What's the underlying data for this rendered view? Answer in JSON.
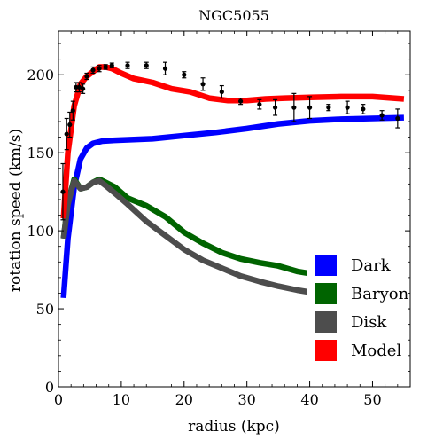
{
  "chart_data": {
    "type": "line",
    "title": "NGC5055",
    "xlabel": "radius (kpc)",
    "ylabel": "rotation speed (km/s)",
    "xlim": [
      0,
      56
    ],
    "ylim": [
      0,
      228
    ],
    "xticks": [
      0,
      10,
      20,
      30,
      40,
      50
    ],
    "yticks": [
      0,
      50,
      100,
      150,
      200
    ],
    "grid": false,
    "legend": "bottom-right",
    "series": [
      {
        "name": "Dark",
        "color": "#0000ff",
        "x": [
          0.8,
          1.5,
          2.5,
          3.5,
          4.5,
          5.5,
          7,
          9,
          12,
          15,
          20,
          25,
          30,
          35,
          40,
          45,
          50,
          55
        ],
        "y": [
          57,
          95,
          128,
          146,
          153,
          156,
          157.5,
          158,
          158.5,
          159,
          161,
          163,
          165.5,
          168.5,
          170.5,
          171.5,
          172,
          172.5
        ]
      },
      {
        "name": "Baryon",
        "color": "#006400",
        "x": [
          0.8,
          1.5,
          2.5,
          3.5,
          4.5,
          5.5,
          6.5,
          7.5,
          9,
          11,
          14,
          17,
          20,
          23,
          26,
          29,
          32,
          35,
          38,
          41,
          44,
          47,
          50,
          55
        ],
        "y": [
          95,
          118,
          133,
          127,
          128,
          131,
          133,
          131,
          128,
          121,
          116,
          109,
          99,
          92,
          86,
          82,
          79.5,
          77.5,
          74,
          72,
          70,
          68.5,
          66.5,
          62
        ]
      },
      {
        "name": "Disk",
        "color": "#4d4d4d",
        "x": [
          0.8,
          1.5,
          2.5,
          3.5,
          4.5,
          5.5,
          6.5,
          7.5,
          9,
          11,
          14,
          17,
          20,
          23,
          26,
          29,
          32,
          35,
          38,
          41,
          44,
          47,
          50,
          55
        ],
        "y": [
          95,
          117,
          132,
          127,
          128,
          131,
          132,
          129,
          124,
          117,
          106,
          97,
          88,
          81,
          76,
          71,
          67.5,
          64.5,
          62,
          60,
          58,
          56,
          54.5,
          52
        ]
      },
      {
        "name": "Model",
        "color": "#ff0000",
        "x": [
          0.8,
          1.5,
          2.5,
          3.5,
          4.5,
          5.5,
          6.5,
          7.5,
          8.5,
          10,
          12,
          15,
          18,
          21,
          24,
          27,
          30,
          33,
          36,
          40,
          45,
          50,
          55
        ],
        "y": [
          108,
          150,
          180,
          194,
          199,
          202,
          205,
          205,
          204,
          201,
          197.5,
          195,
          191,
          189,
          185,
          183.5,
          183.5,
          184.5,
          185,
          185.5,
          186,
          186,
          184.5
        ]
      }
    ],
    "observed": {
      "color": "#000000",
      "x": [
        0.7,
        1.3,
        1.8,
        2.3,
        2.8,
        3.3,
        3.9,
        4.5,
        5.5,
        6.5,
        7.5,
        8.5,
        11,
        14,
        17,
        20,
        23,
        26,
        29,
        32,
        34.5,
        37.5,
        40,
        43,
        46,
        48.5,
        51.5,
        54
      ],
      "y": [
        125,
        162,
        168,
        177,
        192,
        192,
        191,
        199,
        203,
        204,
        205,
        206,
        206,
        206,
        204,
        200,
        194,
        189,
        183,
        181,
        179,
        179,
        179,
        179,
        179,
        178,
        174,
        172
      ],
      "err": [
        18,
        10,
        8,
        6,
        3,
        3,
        3,
        2,
        2,
        2,
        1.5,
        1.5,
        2,
        2,
        4,
        2,
        4,
        4,
        2,
        3,
        5,
        9,
        7,
        2,
        4,
        3,
        3,
        6
      ]
    }
  }
}
